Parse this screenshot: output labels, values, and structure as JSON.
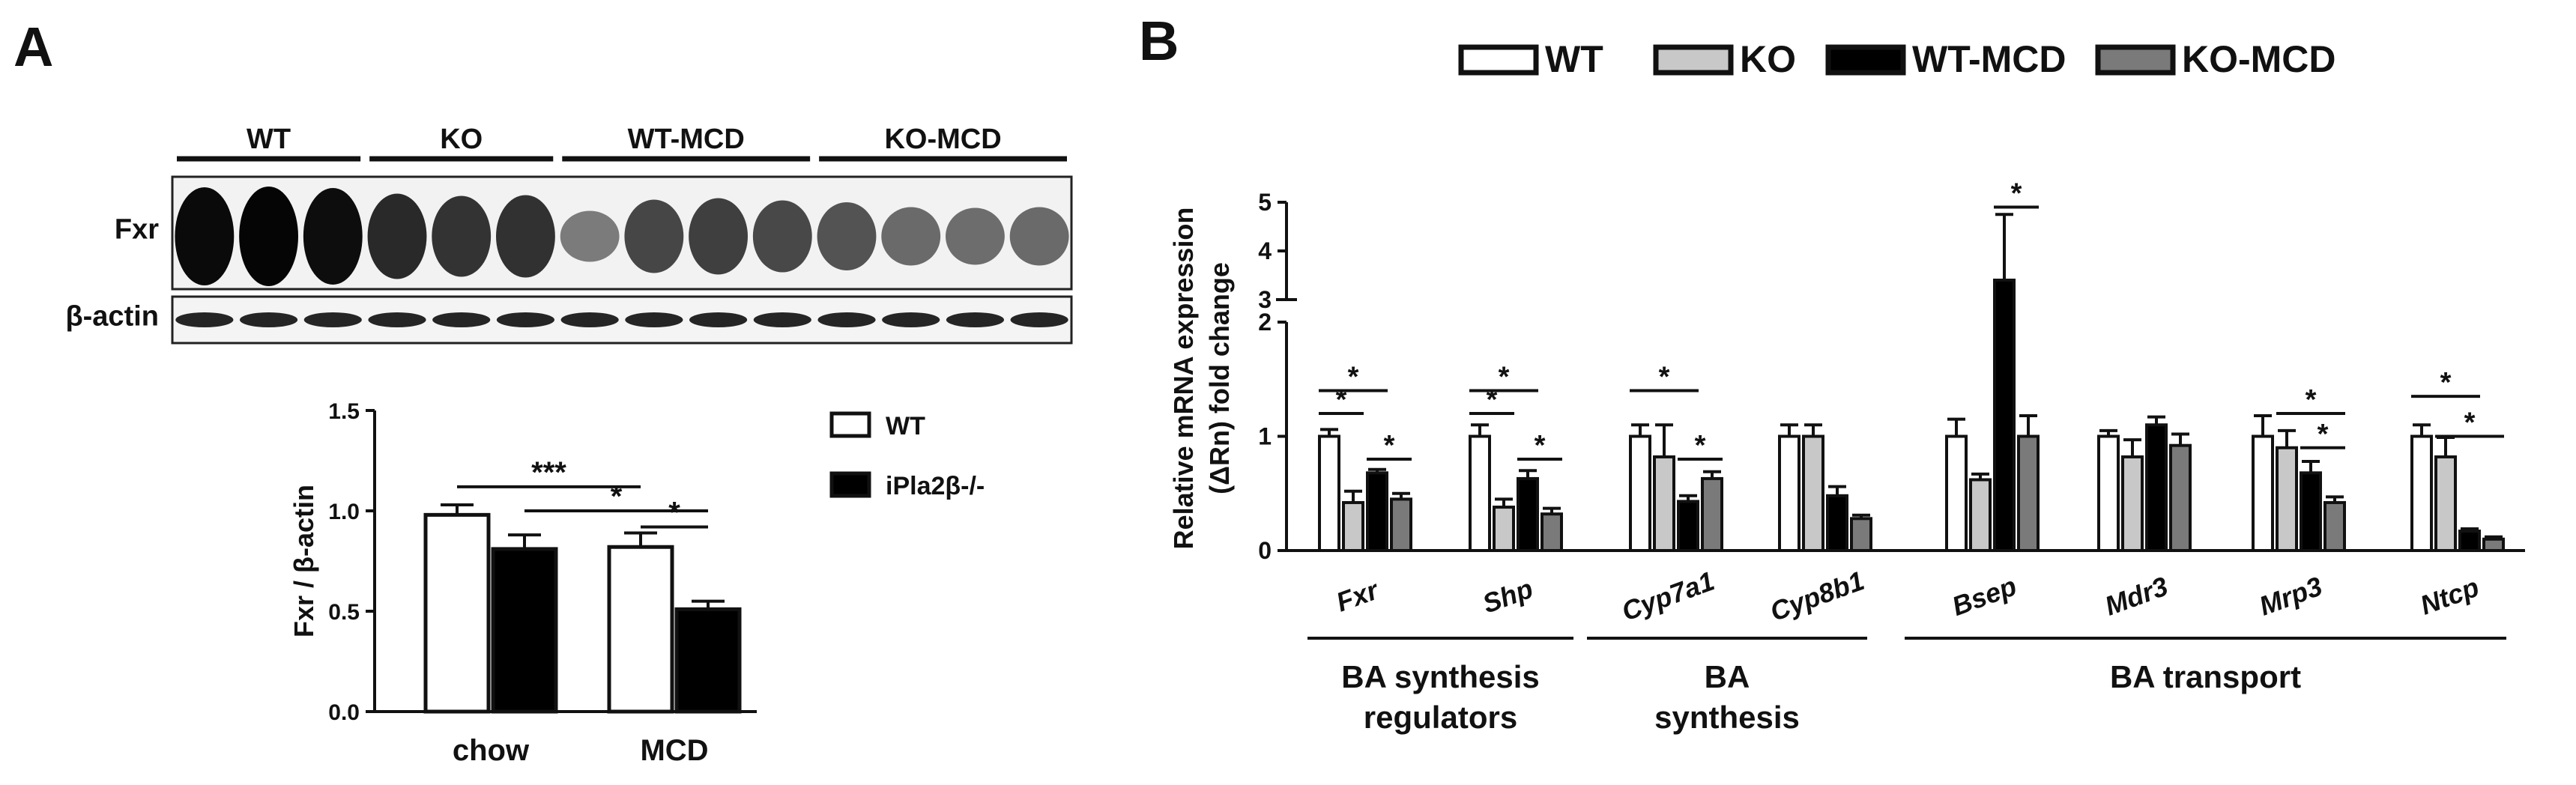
{
  "panels": {
    "a": {
      "letter": "A"
    },
    "b": {
      "letter": "B"
    }
  },
  "blot": {
    "groups": [
      "WT",
      "KO",
      "WT-MCD",
      "KO-MCD"
    ],
    "lanes_per_group": [
      3,
      3,
      4,
      4
    ],
    "rows": [
      "Fxr",
      "β-actin"
    ],
    "fxr_band_intensity": [
      0.95,
      0.97,
      0.93,
      0.78,
      0.72,
      0.74,
      0.32,
      0.62,
      0.66,
      0.6,
      0.55,
      0.42,
      0.4,
      0.42
    ],
    "actin_band_intensity": [
      0.85,
      0.85,
      0.85,
      0.85,
      0.85,
      0.85,
      0.85,
      0.85,
      0.85,
      0.85,
      0.85,
      0.85,
      0.85,
      0.85
    ]
  },
  "chart_data": [
    {
      "type": "bar",
      "panel": "A",
      "categories": [
        "chow",
        "MCD"
      ],
      "series": [
        {
          "name": "WT",
          "values": [
            0.98,
            0.82
          ],
          "errors": [
            0.05,
            0.07
          ],
          "fill": "#ffffff"
        },
        {
          "name": "iPla2β-/-",
          "values": [
            0.81,
            0.51
          ],
          "errors": [
            0.07,
            0.04
          ],
          "fill": "#000000"
        }
      ],
      "ylabel": "Fxr / β-actin",
      "ylim": [
        0,
        1.5
      ],
      "yticks": [
        "0.0",
        "0.5",
        "1.0",
        "1.5"
      ],
      "significance": [
        {
          "label": "***",
          "from": [
            "chow",
            "WT"
          ],
          "to": [
            "MCD",
            "WT"
          ]
        },
        {
          "label": "*",
          "from": [
            "chow",
            "iPla2β-/-"
          ],
          "to": [
            "MCD",
            "iPla2β-/-"
          ]
        },
        {
          "label": "*",
          "from": [
            "MCD",
            "WT"
          ],
          "to": [
            "MCD",
            "iPla2β-/-"
          ]
        }
      ],
      "legend_position": "right"
    },
    {
      "type": "bar",
      "panel": "B",
      "categories": [
        "Fxr",
        "Shp",
        "Cyp7a1",
        "Cyp8b1",
        "Bsep",
        "Mdr3",
        "Mrp3",
        "Ntcp"
      ],
      "series": [
        {
          "name": "WT",
          "fill": "#ffffff",
          "values": [
            1.0,
            1.0,
            1.0,
            1.0,
            1.0,
            1.0,
            1.0,
            1.0
          ],
          "errors": [
            0.06,
            0.1,
            0.1,
            0.1,
            0.15,
            0.05,
            0.18,
            0.1
          ]
        },
        {
          "name": "KO",
          "fill": "#c8c8c8",
          "values": [
            0.42,
            0.38,
            0.82,
            1.0,
            0.62,
            0.82,
            0.9,
            0.82
          ],
          "errors": [
            0.1,
            0.07,
            0.28,
            0.1,
            0.05,
            0.15,
            0.15,
            0.17
          ]
        },
        {
          "name": "WT-MCD",
          "fill": "#000000",
          "values": [
            0.68,
            0.63,
            0.43,
            0.48,
            3.4,
            1.1,
            0.68,
            0.17
          ],
          "errors": [
            0.03,
            0.07,
            0.05,
            0.08,
            1.35,
            0.07,
            0.1,
            0.02
          ]
        },
        {
          "name": "KO-MCD",
          "fill": "#7a7a7a",
          "values": [
            0.45,
            0.32,
            0.63,
            0.28,
            1.0,
            0.92,
            0.42,
            0.1
          ],
          "errors": [
            0.05,
            0.05,
            0.06,
            0.03,
            0.18,
            0.1,
            0.05,
            0.02
          ]
        }
      ],
      "ylabel_line1": "Relative mRNA expression",
      "ylabel_line2": "(ΔRn) fold change",
      "ylim_lower": [
        0,
        2
      ],
      "ylim_upper": [
        3,
        5
      ],
      "axis_break": true,
      "yticks": [
        "0",
        "1",
        "2",
        "3",
        "4",
        "5"
      ],
      "significance": [
        {
          "label": "*",
          "category": "Fxr",
          "from": "WT",
          "to": "KO"
        },
        {
          "label": "*",
          "category": "Fxr",
          "from": "WT",
          "to": "WT-MCD"
        },
        {
          "label": "*",
          "category": "Fxr",
          "from": "WT-MCD",
          "to": "KO-MCD"
        },
        {
          "label": "*",
          "category": "Shp",
          "from": "WT",
          "to": "KO"
        },
        {
          "label": "*",
          "category": "Shp",
          "from": "WT",
          "to": "WT-MCD"
        },
        {
          "label": "*",
          "category": "Shp",
          "from": "WT-MCD",
          "to": "KO-MCD"
        },
        {
          "label": "*",
          "category": "Cyp7a1",
          "from": "WT",
          "to": "WT-MCD"
        },
        {
          "label": "*",
          "category": "Cyp7a1",
          "from": "WT-MCD",
          "to": "KO-MCD"
        },
        {
          "label": "*",
          "category": "Bsep",
          "from": "WT-MCD",
          "to": "KO-MCD"
        },
        {
          "label": "*",
          "category": "Mrp3",
          "from": "KO",
          "to": "KO-MCD"
        },
        {
          "label": "*",
          "category": "Mrp3",
          "from": "WT-MCD",
          "to": "KO-MCD"
        },
        {
          "label": "*",
          "category": "Ntcp",
          "from": "WT",
          "to": "WT-MCD"
        },
        {
          "label": "*",
          "category": "Ntcp",
          "from": "KO",
          "to": "KO-MCD"
        }
      ],
      "group_labels": [
        {
          "lines": [
            "BA synthesis",
            "regulators"
          ],
          "categories": [
            "Fxr",
            "Shp"
          ]
        },
        {
          "lines": [
            "BA",
            "synthesis"
          ],
          "categories": [
            "Cyp7a1",
            "Cyp8b1"
          ]
        },
        {
          "lines": [
            "BA transport"
          ],
          "categories": [
            "Bsep",
            "Mdr3",
            "Mrp3",
            "Ntcp"
          ]
        }
      ],
      "legend_position": "top"
    }
  ]
}
